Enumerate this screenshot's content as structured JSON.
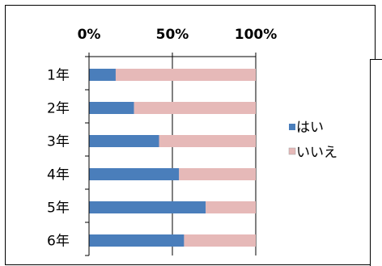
{
  "chart_data": {
    "type": "bar",
    "orientation": "horizontal",
    "stacked_percent": true,
    "categories": [
      "1年",
      "2年",
      "3年",
      "4年",
      "5年",
      "6年"
    ],
    "series": [
      {
        "name": "はい",
        "values": [
          16,
          27,
          42,
          54,
          70,
          57
        ],
        "color": "#4a7ebb"
      },
      {
        "name": "いいえ",
        "values": [
          84,
          73,
          58,
          46,
          30,
          43
        ],
        "color": "#e6b9b8"
      }
    ],
    "x_ticks": [
      "0%",
      "50%",
      "100%"
    ],
    "xlim": [
      0,
      100
    ],
    "axis_position": "top",
    "legend_position": "right",
    "grid": "vertical"
  }
}
